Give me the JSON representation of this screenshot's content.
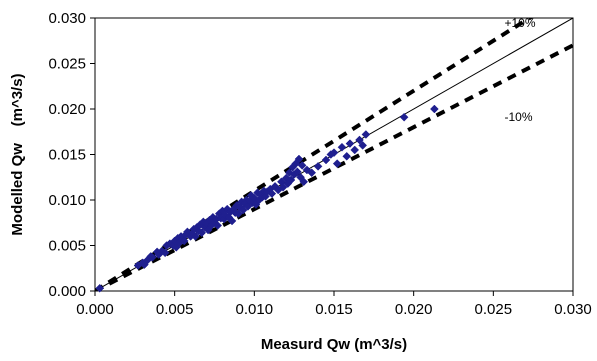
{
  "chart_data": {
    "type": "scatter",
    "xlabel": "Measurd Qw (m^3/s)",
    "ylabel": "Modelled Qw    (m^3/s)",
    "xlim": [
      0,
      0.03
    ],
    "ylim": [
      0,
      0.03
    ],
    "x_ticks": [
      "0.000",
      "0.005",
      "0.010",
      "0.015",
      "0.020",
      "0.025",
      "0.030"
    ],
    "y_ticks": [
      "0.000",
      "0.005",
      "0.010",
      "0.015",
      "0.020",
      "0.025",
      "0.030"
    ],
    "grid": false,
    "legend": "none",
    "marker_color": "#1f1f8f",
    "reference_lines": [
      {
        "kind": "1:1",
        "slope": 1.0,
        "style": "solid"
      },
      {
        "kind": "+10%",
        "slope": 1.1,
        "style": "dashed",
        "label": "+10%"
      },
      {
        "kind": "-10%",
        "slope": 0.9,
        "style": "dashed",
        "label": "-10%"
      }
    ],
    "series": [
      {
        "points": [
          [
            0.0003,
            0.0003
          ],
          [
            0.0027,
            0.0028
          ],
          [
            0.003,
            0.0031
          ],
          [
            0.0031,
            0.0029
          ],
          [
            0.0033,
            0.0034
          ],
          [
            0.0035,
            0.0038
          ],
          [
            0.0036,
            0.0037
          ],
          [
            0.0039,
            0.0043
          ],
          [
            0.004,
            0.004
          ],
          [
            0.0042,
            0.0044
          ],
          [
            0.0044,
            0.0042
          ],
          [
            0.0045,
            0.005
          ],
          [
            0.0047,
            0.0052
          ],
          [
            0.0049,
            0.005
          ],
          [
            0.005,
            0.0055
          ],
          [
            0.0051,
            0.0048
          ],
          [
            0.0052,
            0.0058
          ],
          [
            0.0053,
            0.0053
          ],
          [
            0.0054,
            0.006
          ],
          [
            0.0055,
            0.0057
          ],
          [
            0.0056,
            0.0055
          ],
          [
            0.0057,
            0.0062
          ],
          [
            0.0058,
            0.0065
          ],
          [
            0.006,
            0.006
          ],
          [
            0.0061,
            0.0063
          ],
          [
            0.0062,
            0.0068
          ],
          [
            0.0063,
            0.006
          ],
          [
            0.0064,
            0.007
          ],
          [
            0.0065,
            0.0066
          ],
          [
            0.0066,
            0.0073
          ],
          [
            0.0067,
            0.0064
          ],
          [
            0.0068,
            0.0076
          ],
          [
            0.0069,
            0.007
          ],
          [
            0.007,
            0.0074
          ],
          [
            0.0071,
            0.0067
          ],
          [
            0.0072,
            0.0078
          ],
          [
            0.0073,
            0.0072
          ],
          [
            0.0074,
            0.0081
          ],
          [
            0.0075,
            0.0075
          ],
          [
            0.0076,
            0.0079
          ],
          [
            0.0077,
            0.0072
          ],
          [
            0.0078,
            0.0085
          ],
          [
            0.0079,
            0.008
          ],
          [
            0.008,
            0.0088
          ],
          [
            0.0081,
            0.0079
          ],
          [
            0.0082,
            0.0083
          ],
          [
            0.0083,
            0.009
          ],
          [
            0.0084,
            0.0081
          ],
          [
            0.0085,
            0.0087
          ],
          [
            0.0086,
            0.0077
          ],
          [
            0.0087,
            0.009
          ],
          [
            0.0088,
            0.0086
          ],
          [
            0.0089,
            0.0094
          ],
          [
            0.009,
            0.0085
          ],
          [
            0.0091,
            0.0092
          ],
          [
            0.0092,
            0.0098
          ],
          [
            0.0093,
            0.0089
          ],
          [
            0.0094,
            0.0096
          ],
          [
            0.0095,
            0.01
          ],
          [
            0.0096,
            0.0093
          ],
          [
            0.0097,
            0.0099
          ],
          [
            0.0098,
            0.0105
          ],
          [
            0.0099,
            0.0097
          ],
          [
            0.01,
            0.0102
          ],
          [
            0.0101,
            0.0095
          ],
          [
            0.0102,
            0.0108
          ],
          [
            0.0103,
            0.01
          ],
          [
            0.0104,
            0.0106
          ],
          [
            0.0105,
            0.0103
          ],
          [
            0.0106,
            0.011
          ],
          [
            0.0107,
            0.0104
          ],
          [
            0.0108,
            0.0109
          ],
          [
            0.011,
            0.0112
          ],
          [
            0.0111,
            0.0107
          ],
          [
            0.0113,
            0.0115
          ],
          [
            0.0115,
            0.0111
          ],
          [
            0.0117,
            0.012
          ],
          [
            0.0118,
            0.0114
          ],
          [
            0.012,
            0.0124
          ],
          [
            0.0121,
            0.0118
          ],
          [
            0.0122,
            0.013
          ],
          [
            0.0123,
            0.0122
          ],
          [
            0.0124,
            0.0136
          ],
          [
            0.0125,
            0.0128
          ],
          [
            0.0126,
            0.014
          ],
          [
            0.0127,
            0.0131
          ],
          [
            0.0128,
            0.0145
          ],
          [
            0.0129,
            0.0125
          ],
          [
            0.013,
            0.0138
          ],
          [
            0.0131,
            0.012
          ],
          [
            0.0133,
            0.0133
          ],
          [
            0.0136,
            0.013
          ],
          [
            0.014,
            0.0137
          ],
          [
            0.0145,
            0.0144
          ],
          [
            0.0148,
            0.015
          ],
          [
            0.015,
            0.0152
          ],
          [
            0.0152,
            0.014
          ],
          [
            0.0155,
            0.0158
          ],
          [
            0.0158,
            0.0148
          ],
          [
            0.016,
            0.0162
          ],
          [
            0.0163,
            0.0155
          ],
          [
            0.0166,
            0.0166
          ],
          [
            0.0168,
            0.016
          ],
          [
            0.017,
            0.0172
          ],
          [
            0.0194,
            0.0191
          ],
          [
            0.0213,
            0.02
          ]
        ]
      }
    ],
    "annotations": [
      {
        "text": "+10%",
        "x": 0.0257,
        "y": 0.029
      },
      {
        "text": "-10%",
        "x": 0.0257,
        "y": 0.0187
      }
    ]
  }
}
